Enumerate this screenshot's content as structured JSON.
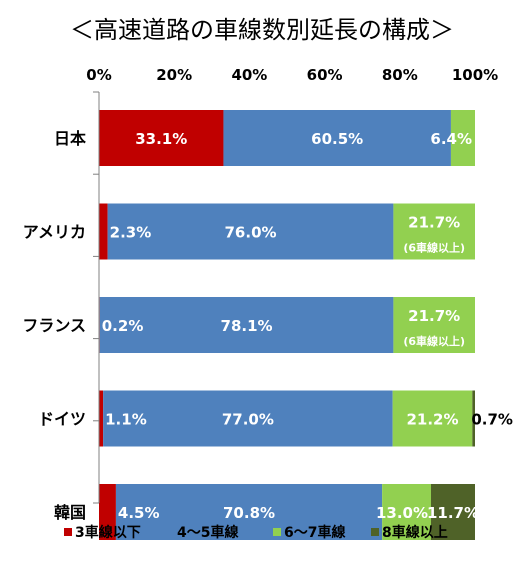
{
  "chart_data": {
    "type": "bar",
    "orientation": "horizontal",
    "stacked": true,
    "title": "＜高速道路の車線数別延長の構成＞",
    "xlim": [
      0,
      100
    ],
    "x_ticks": [
      "0%",
      "20%",
      "40%",
      "60%",
      "80%",
      "100%"
    ],
    "x_axis_position": "top",
    "grid": false,
    "legend_position": "bottom",
    "categories": [
      "日本",
      "アメリカ",
      "フランス",
      "ドイツ",
      "韓国"
    ],
    "series": [
      {
        "name": "3車線以下",
        "color": "#c00000",
        "values": [
          33.1,
          2.3,
          0.2,
          1.1,
          4.5
        ],
        "labels": [
          "33.1%",
          "2.3%",
          "0.2%",
          "1.1%",
          "4.5%"
        ]
      },
      {
        "name": "4～5車線",
        "color": "#4f81bd",
        "values": [
          60.5,
          76.0,
          78.1,
          77.0,
          70.8
        ],
        "labels": [
          "60.5%",
          "76.0%",
          "78.1%",
          "77.0%",
          "70.8%"
        ]
      },
      {
        "name": "6～7車線",
        "color": "#92d050",
        "values": [
          6.4,
          21.7,
          21.7,
          21.2,
          13.0
        ],
        "labels": [
          "6.4%",
          "21.7%",
          "21.7%",
          "21.2%",
          "13.0%"
        ]
      },
      {
        "name": "8車線以上",
        "color": "#4f6228",
        "values": [
          0,
          0,
          0,
          0.7,
          11.7
        ],
        "labels": [
          "",
          "",
          "",
          "0.7%",
          "11.7%"
        ]
      }
    ],
    "annotations": [
      "",
      "(6車線以上)",
      "(6車線以上)",
      "",
      ""
    ]
  }
}
